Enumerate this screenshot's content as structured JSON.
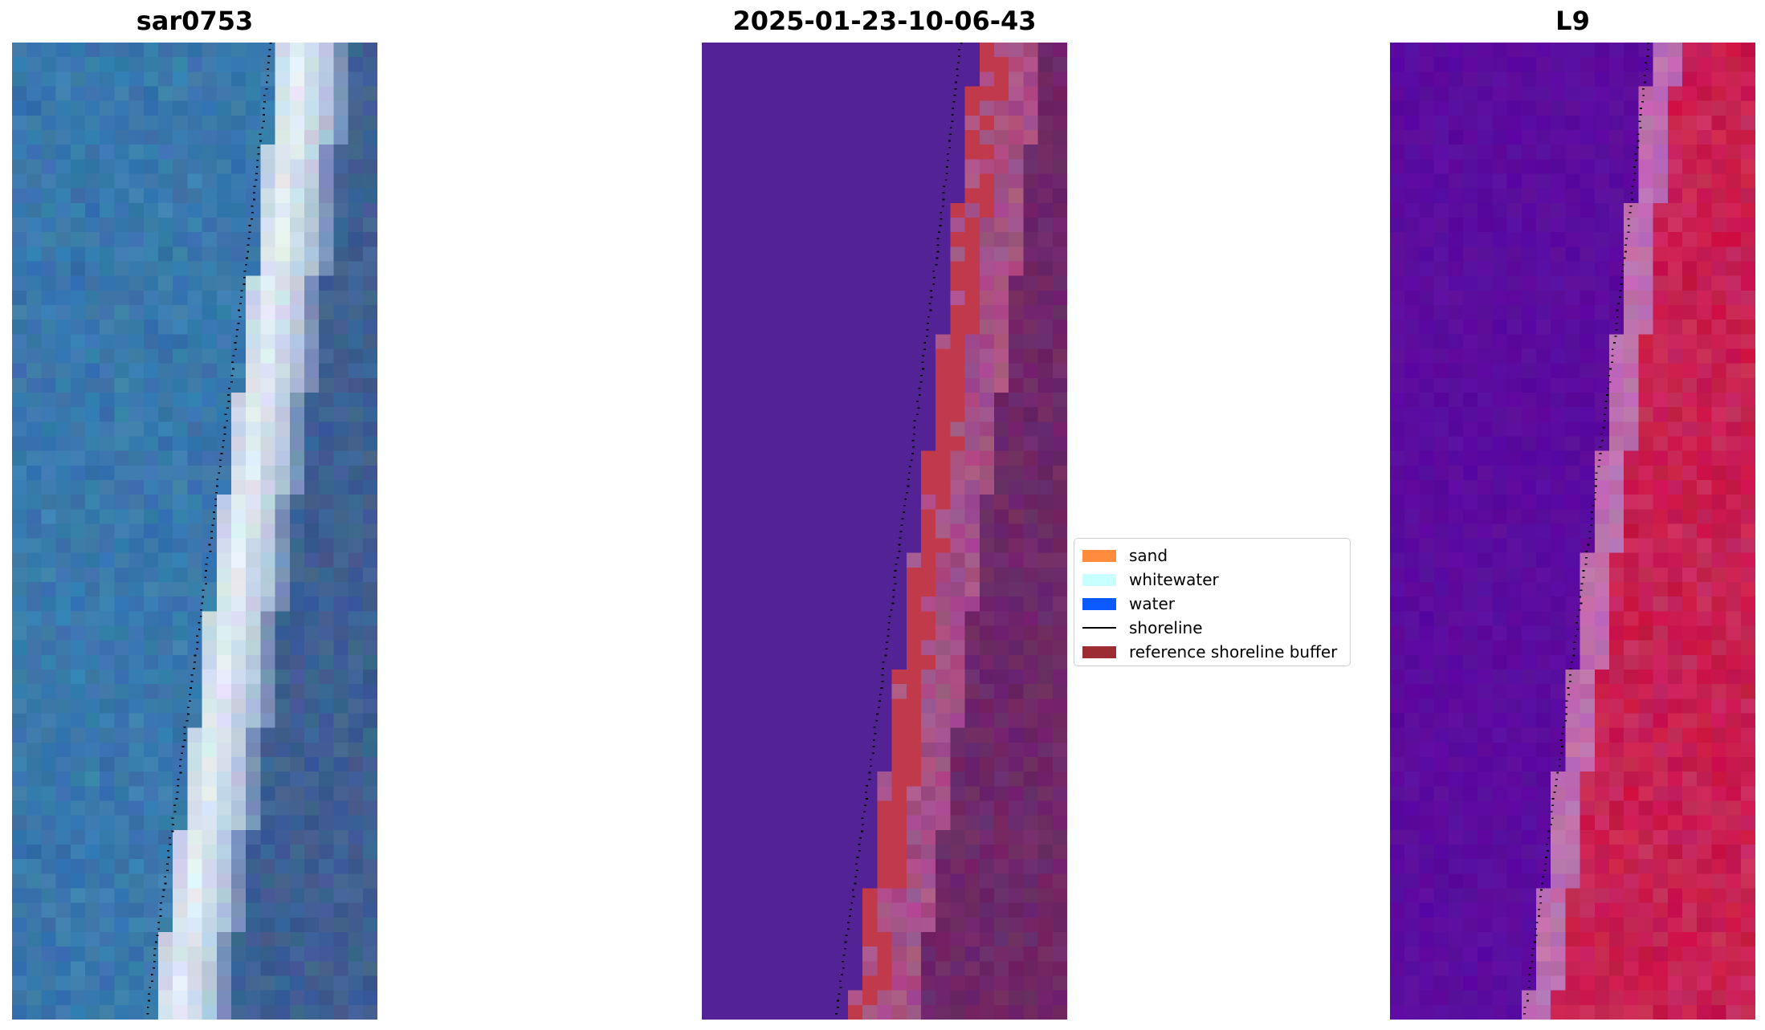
{
  "panels": [
    {
      "title": "sar0753",
      "kind": "rgb"
    },
    {
      "title": "2025-01-23-10-06-43",
      "kind": "classified"
    },
    {
      "title": "L9",
      "kind": "mndwi"
    }
  ],
  "legend": {
    "items": [
      {
        "label": "sand",
        "type": "patch",
        "color": "#ff8c3c"
      },
      {
        "label": "whitewater",
        "type": "patch",
        "color": "#c8ffff"
      },
      {
        "label": "water",
        "type": "patch",
        "color": "#0a5aff"
      },
      {
        "label": "shoreline",
        "type": "line",
        "color": "#000000"
      },
      {
        "label": "reference shoreline buffer",
        "type": "patch",
        "color": "#9b2d33"
      }
    ]
  },
  "colors": {
    "ocean": "#3c7fb0",
    "surf": "#e6f0f6",
    "land_rgb": "#3e5f92",
    "water_class": "#532396",
    "buffer_class": "#c13a4b",
    "land_class": "#6e2868",
    "index_low": "#5a0a9e",
    "index_high": "#c81446"
  }
}
